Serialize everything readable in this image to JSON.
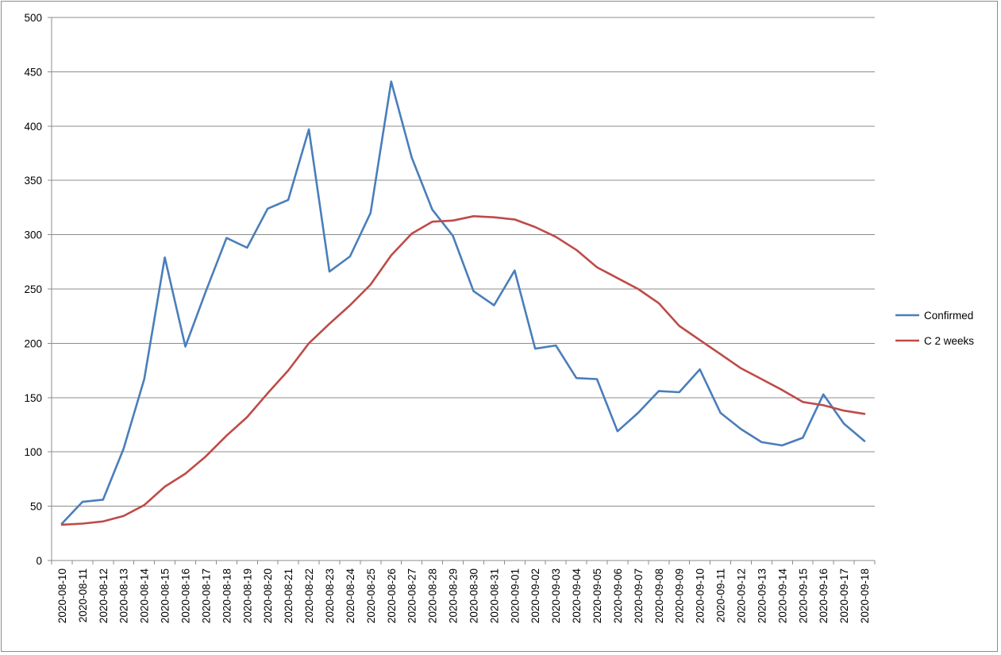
{
  "chart_data": {
    "type": "line",
    "title": "",
    "xlabel": "",
    "ylabel": "",
    "ylim": [
      0,
      500
    ],
    "yticks": [
      0,
      50,
      100,
      150,
      200,
      250,
      300,
      350,
      400,
      450,
      500
    ],
    "grid": true,
    "legend_position": "right",
    "categories": [
      "2020-08-10",
      "2020-08-11",
      "2020-08-12",
      "2020-08-13",
      "2020-08-14",
      "2020-08-15",
      "2020-08-16",
      "2020-08-17",
      "2020-08-18",
      "2020-08-19",
      "2020-08-20",
      "2020-08-21",
      "2020-08-22",
      "2020-08-23",
      "2020-08-24",
      "2020-08-25",
      "2020-08-26",
      "2020-08-27",
      "2020-08-28",
      "2020-08-29",
      "2020-08-30",
      "2020-08-31",
      "2020-09-01",
      "2020-09-02",
      "2020-09-03",
      "2020-09-04",
      "2020-09-05",
      "2020-09-06",
      "2020-09-07",
      "2020-09-08",
      "2020-09-09",
      "2020-09-10",
      "2020-09-11",
      "2020-09-12",
      "2020-09-13",
      "2020-09-14",
      "2020-09-15",
      "2020-09-16",
      "2020-09-17",
      "2020-09-18"
    ],
    "series": [
      {
        "name": "Confirmed",
        "color": "#4a7ebb",
        "values": [
          34,
          54,
          56,
          103,
          167,
          279,
          197,
          248,
          297,
          288,
          324,
          332,
          397,
          266,
          280,
          320,
          441,
          371,
          323,
          299,
          248,
          235,
          267,
          195,
          198,
          168,
          167,
          119,
          136,
          156,
          155,
          176,
          136,
          121,
          109,
          106,
          113,
          153,
          126,
          110
        ]
      },
      {
        "name": "C 2 weeks",
        "color": "#be4b48",
        "values": [
          33,
          34,
          36,
          41,
          51,
          68,
          80,
          96,
          115,
          132,
          154,
          175,
          200,
          218,
          235,
          254,
          281,
          301,
          312,
          313,
          317,
          316,
          314,
          307,
          298,
          286,
          270,
          260,
          250,
          237,
          216,
          203,
          190,
          177,
          167,
          157,
          146,
          143,
          138,
          135
        ]
      }
    ]
  }
}
